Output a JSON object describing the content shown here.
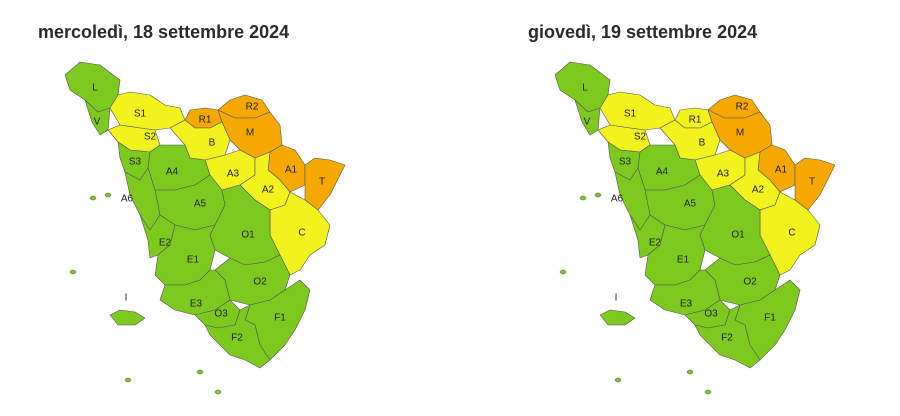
{
  "maps": [
    {
      "title": "mercoledì, 18 settembre 2024",
      "zones": [
        {
          "label": "L",
          "color": "#7dc91f"
        },
        {
          "label": "V",
          "color": "#7dc91f"
        },
        {
          "label": "S1",
          "color": "#f2f21f"
        },
        {
          "label": "S2",
          "color": "#f2f21f"
        },
        {
          "label": "S3",
          "color": "#7dc91f"
        },
        {
          "label": "R1",
          "color": "#f5a800"
        },
        {
          "label": "R2",
          "color": "#f5a800"
        },
        {
          "label": "M",
          "color": "#f5a800"
        },
        {
          "label": "B",
          "color": "#f2f21f"
        },
        {
          "label": "A1",
          "color": "#f5a800"
        },
        {
          "label": "T",
          "color": "#f5a800"
        },
        {
          "label": "A3",
          "color": "#f2f21f"
        },
        {
          "label": "A2",
          "color": "#f2f21f"
        },
        {
          "label": "A4",
          "color": "#7dc91f"
        },
        {
          "label": "A5",
          "color": "#7dc91f"
        },
        {
          "label": "A6",
          "color": "#7dc91f"
        },
        {
          "label": "C",
          "color": "#f2f21f"
        },
        {
          "label": "O1",
          "color": "#7dc91f"
        },
        {
          "label": "E2",
          "color": "#7dc91f"
        },
        {
          "label": "E1",
          "color": "#7dc91f"
        },
        {
          "label": "O2",
          "color": "#7dc91f"
        },
        {
          "label": "E3",
          "color": "#7dc91f"
        },
        {
          "label": "O3",
          "color": "#7dc91f"
        },
        {
          "label": "F1",
          "color": "#7dc91f"
        },
        {
          "label": "F2",
          "color": "#7dc91f"
        },
        {
          "label": "I",
          "color": "#7dc91f"
        }
      ]
    },
    {
      "title": "giovedì, 19 settembre 2024",
      "zones": [
        {
          "label": "L",
          "color": "#7dc91f"
        },
        {
          "label": "V",
          "color": "#7dc91f"
        },
        {
          "label": "S1",
          "color": "#f2f21f"
        },
        {
          "label": "S2",
          "color": "#f2f21f"
        },
        {
          "label": "S3",
          "color": "#7dc91f"
        },
        {
          "label": "R1",
          "color": "#f2f21f"
        },
        {
          "label": "R2",
          "color": "#f5a800"
        },
        {
          "label": "M",
          "color": "#f5a800"
        },
        {
          "label": "B",
          "color": "#f2f21f"
        },
        {
          "label": "A1",
          "color": "#f5a800"
        },
        {
          "label": "T",
          "color": "#f5a800"
        },
        {
          "label": "A3",
          "color": "#f2f21f"
        },
        {
          "label": "A2",
          "color": "#f2f21f"
        },
        {
          "label": "A4",
          "color": "#7dc91f"
        },
        {
          "label": "A5",
          "color": "#7dc91f"
        },
        {
          "label": "A6",
          "color": "#7dc91f"
        },
        {
          "label": "C",
          "color": "#f2f21f"
        },
        {
          "label": "O1",
          "color": "#7dc91f"
        },
        {
          "label": "E2",
          "color": "#7dc91f"
        },
        {
          "label": "E1",
          "color": "#7dc91f"
        },
        {
          "label": "O2",
          "color": "#7dc91f"
        },
        {
          "label": "E3",
          "color": "#7dc91f"
        },
        {
          "label": "O3",
          "color": "#7dc91f"
        },
        {
          "label": "F1",
          "color": "#7dc91f"
        },
        {
          "label": "F2",
          "color": "#7dc91f"
        },
        {
          "label": "I",
          "color": "#7dc91f"
        }
      ]
    }
  ]
}
